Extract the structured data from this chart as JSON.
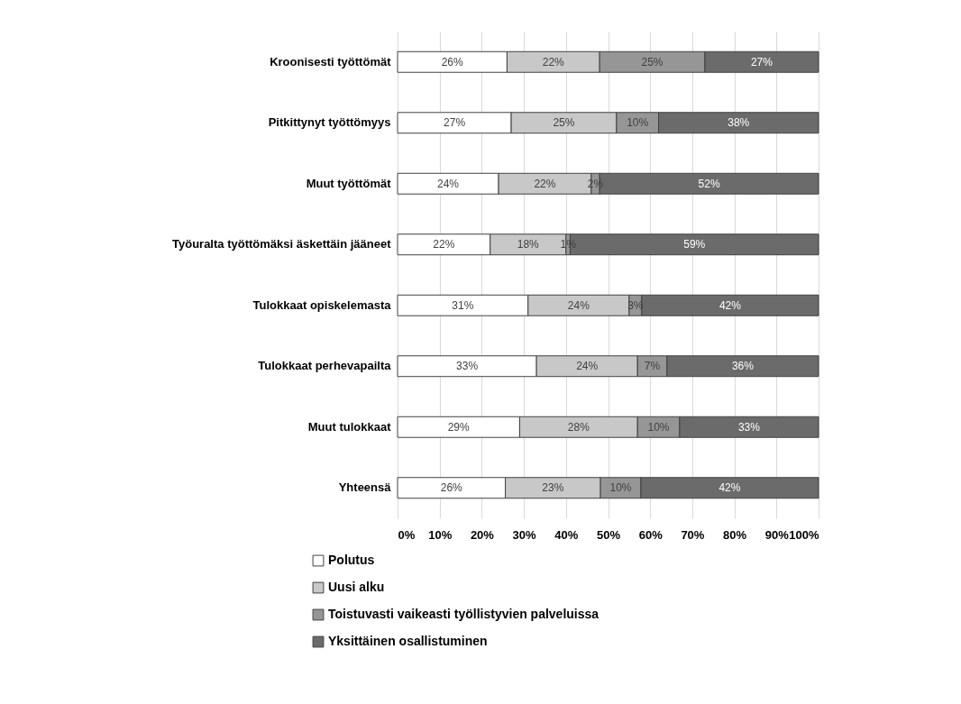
{
  "chart_data": {
    "type": "bar",
    "orientation": "horizontal",
    "stacked": true,
    "categories": [
      "Kroonisesti työttömät",
      "Pitkittynyt työttömyys",
      "Muut työttömät",
      "Työuralta työttömäksi äskettäin jääneet",
      "Tulokkaat opiskelemasta",
      "Tulokkaat perhevapailta",
      "Muut tulokkaat",
      "Yhteensä"
    ],
    "series": [
      {
        "name": "Polutus",
        "color": "#ffffff",
        "values": [
          26,
          27,
          24,
          22,
          31,
          33,
          29,
          25.6
        ],
        "value_labels": [
          "26%",
          "27%",
          "24%",
          "22%",
          "31%",
          "33%",
          "29%",
          "26%"
        ]
      },
      {
        "name": "Uusi alku",
        "color": "#c8c8c8",
        "values": [
          22,
          25,
          22,
          18,
          24,
          24,
          28,
          22.6
        ],
        "value_labels": [
          "22%",
          "25%",
          "22%",
          "18%",
          "24%",
          "24%",
          "28%",
          "23%"
        ]
      },
      {
        "name": "Toistuvasti vaikeasti työllistyvien palveluissa",
        "color": "#969696",
        "values": [
          25,
          10,
          2,
          1,
          3,
          7,
          10,
          9.6
        ],
        "value_labels": [
          "25%",
          "10%",
          "2%",
          "1%",
          "3%",
          "7%",
          "10%",
          "10%"
        ]
      },
      {
        "name": "Yksittäinen osallistuminen",
        "color": "#6b6b6b",
        "values": [
          27,
          38,
          52,
          59,
          42,
          36,
          33,
          42.2
        ],
        "value_labels": [
          "27%",
          "38%",
          "52%",
          "59%",
          "42%",
          "36%",
          "33%",
          "42%"
        ]
      }
    ],
    "xlim": [
      0,
      100
    ],
    "xticks": [
      {
        "value": 0,
        "label": "0%"
      },
      {
        "value": 10,
        "label": "10%"
      },
      {
        "value": 20,
        "label": "20%"
      },
      {
        "value": 30,
        "label": "30%"
      },
      {
        "value": 40,
        "label": "40%"
      },
      {
        "value": 50,
        "label": "50%"
      },
      {
        "value": 60,
        "label": "60%"
      },
      {
        "value": 70,
        "label": "70%"
      },
      {
        "value": 80,
        "label": "80%"
      },
      {
        "value": 90,
        "label": "90%"
      },
      {
        "value": 100,
        "label": "100%"
      }
    ],
    "grid": "x",
    "legend": "bottom left"
  }
}
